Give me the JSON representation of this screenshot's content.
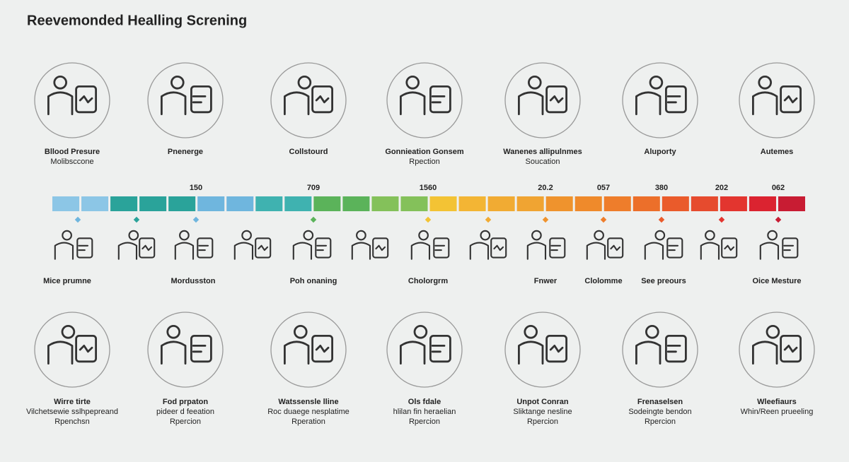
{
  "title": "Reevemonded Healling Screning",
  "top": [
    {
      "lines": [
        "Bllood Presure",
        "Molibsccone"
      ]
    },
    {
      "lines": [
        "Pnenerge"
      ]
    },
    {
      "lines": [
        "Collstourd"
      ]
    },
    {
      "lines": [
        "Gonnieation Gonsem",
        "Rpection"
      ]
    },
    {
      "lines": [
        "Wanenes allipulnmes",
        "Soucation"
      ]
    },
    {
      "lines": [
        "Aluporty"
      ]
    },
    {
      "lines": [
        "Autemes"
      ]
    }
  ],
  "timeline": {
    "numbers": [
      "150",
      "709",
      "1560",
      "20.2",
      "057",
      "380",
      "202",
      "062"
    ]
  },
  "middle": {
    "labels": [
      "Mice prumne",
      "Mordusston",
      "Poh onaning",
      "Cholorgrm",
      "Fnwer",
      "Clolomme",
      "See preours",
      "Oice Mesture"
    ]
  },
  "bottom": [
    {
      "lines": [
        "Wirre tirte",
        "Vilchetsewie sslhpepreand",
        "Rpenchsn"
      ]
    },
    {
      "lines": [
        "Fod prpaton",
        "pideer d feeation",
        "Rpercion"
      ]
    },
    {
      "lines": [
        "Watssensle lline",
        "Roc duaege nesplatime",
        "Rperation"
      ]
    },
    {
      "lines": [
        "Ols fdale",
        "hlilan fin heraelian",
        "Rpercion"
      ]
    },
    {
      "lines": [
        "Unpot Conran",
        "Sliktange nesline",
        "Rpercion"
      ]
    },
    {
      "lines": [
        "Frenaselsen",
        "Sodeingte bendon",
        "Rpercion"
      ]
    },
    {
      "lines": [
        "Wleefiaurs",
        "Whin/Reen prueeling"
      ]
    }
  ]
}
